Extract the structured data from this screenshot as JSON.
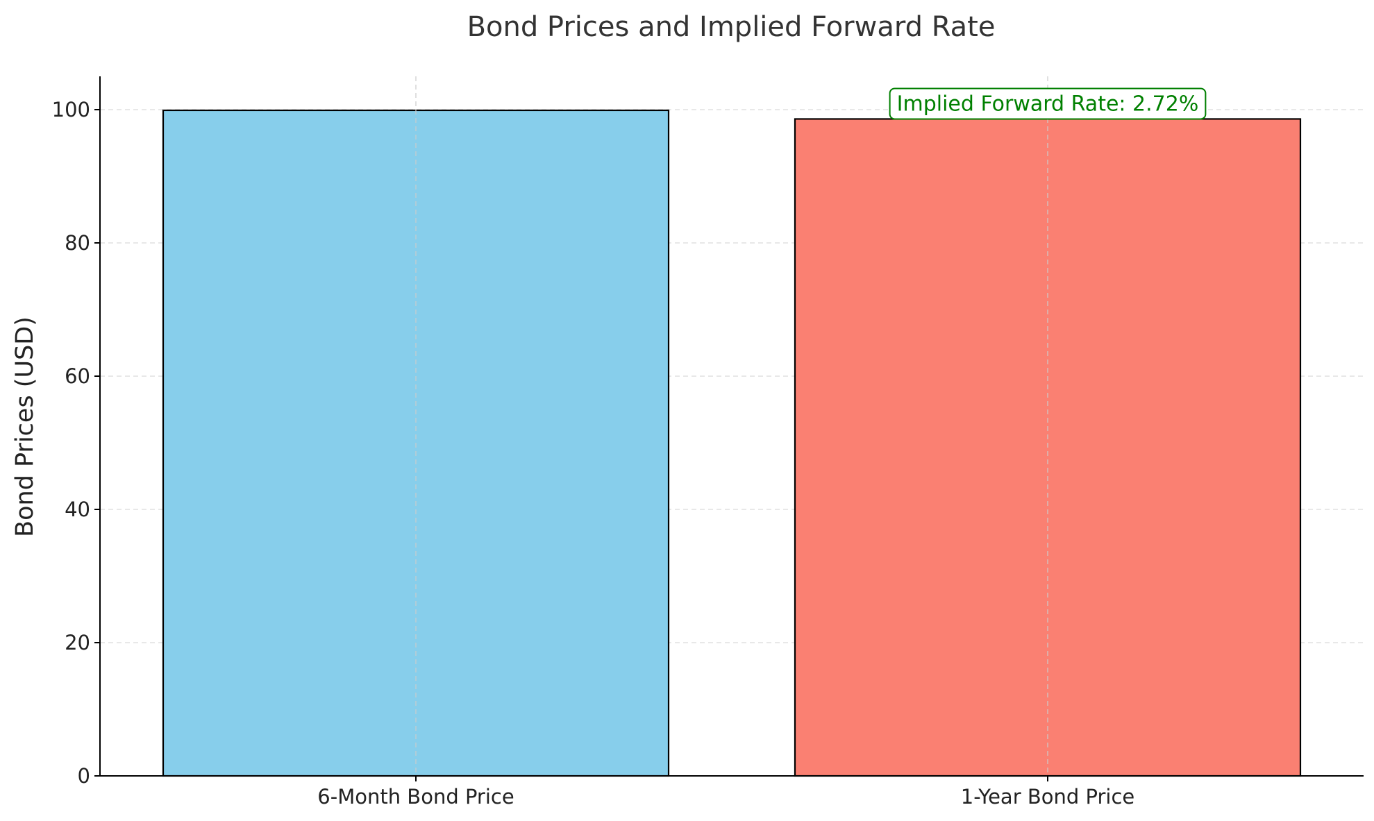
{
  "chart_data": {
    "type": "bar",
    "title": "Bond Prices and Implied Forward Rate",
    "xlabel": "",
    "ylabel": "Bond Prices (USD)",
    "categories": [
      "6-Month Bond Price",
      "1-Year Bond Price"
    ],
    "values": [
      99.9,
      98.6
    ],
    "colors": [
      "#87CEEB",
      "#FA8072"
    ],
    "edge_color": "#000000",
    "ylim": [
      0,
      105
    ],
    "yticks": [
      0,
      20,
      40,
      60,
      80,
      100
    ],
    "grid": true,
    "annotation": {
      "text": "Implied Forward Rate: 2.72%",
      "color": "#008000",
      "category": "1-Year Bond Price"
    }
  }
}
